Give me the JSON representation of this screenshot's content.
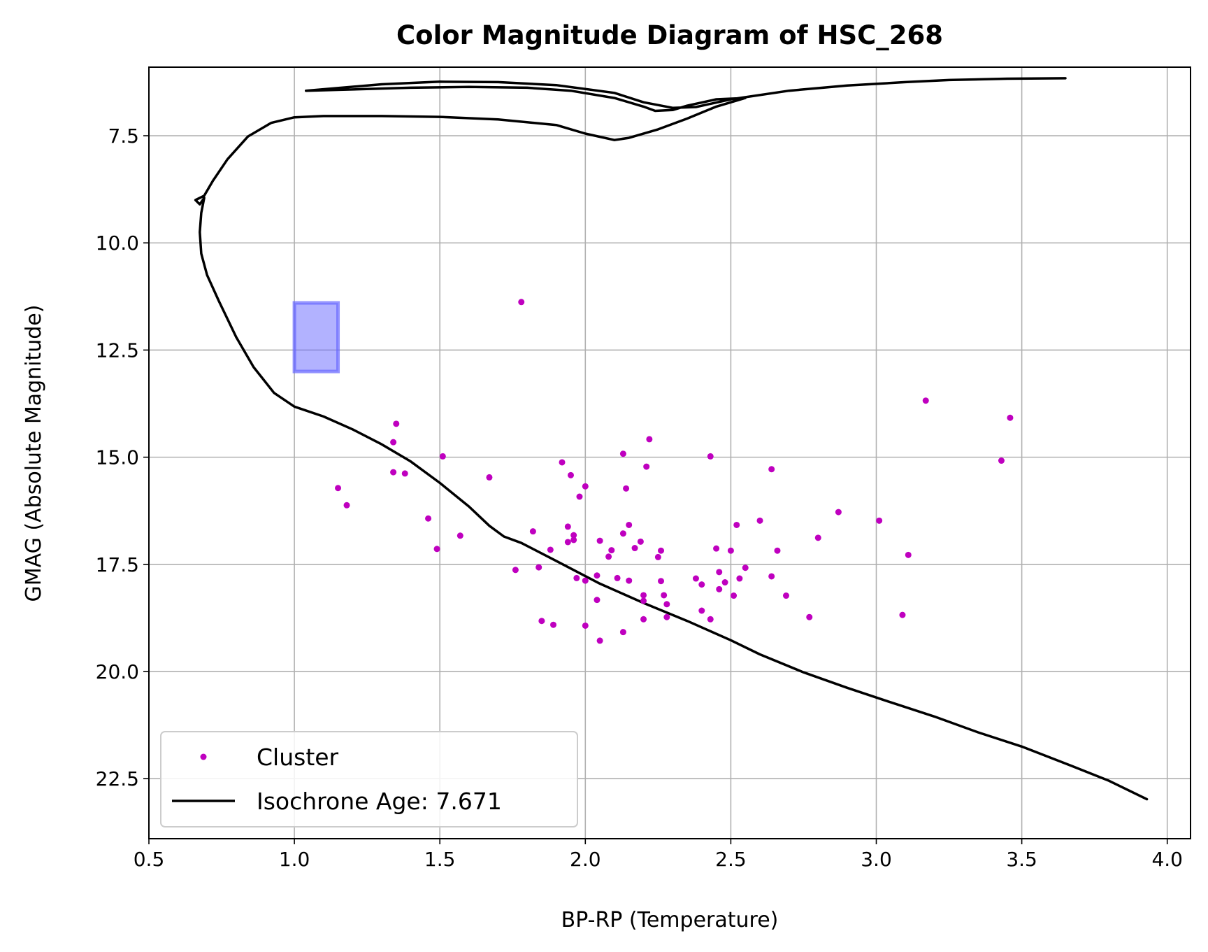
{
  "chart_data": {
    "type": "scatter",
    "title": "Color Magnitude Diagram of HSC_268",
    "xlabel": "BP-RP (Temperature)",
    "ylabel": "GMAG (Absolute Magnitude)",
    "xlim": [
      0.5,
      4.08
    ],
    "ylim": [
      23.9,
      5.9
    ],
    "y_inverted": true,
    "grid": true,
    "legend_position": "lower-left",
    "x_ticks": [
      "0.5",
      "1.0",
      "1.5",
      "2.0",
      "2.5",
      "3.0",
      "3.5",
      "4.0"
    ],
    "x_tick_values": [
      0.5,
      1.0,
      1.5,
      2.0,
      2.5,
      3.0,
      3.5,
      4.0
    ],
    "y_ticks": [
      "7.5",
      "10.0",
      "12.5",
      "15.0",
      "17.5",
      "20.0",
      "22.5"
    ],
    "y_tick_values": [
      7.5,
      10.0,
      12.5,
      15.0,
      17.5,
      20.0,
      22.5
    ],
    "highlight_box": {
      "x": [
        1.0,
        1.15
      ],
      "y": [
        11.4,
        13.0
      ],
      "color": "#6666ff"
    },
    "series": [
      {
        "name": "Cluster",
        "type": "scatter",
        "color": "#bf00bf",
        "points": [
          [
            1.78,
            11.38
          ],
          [
            1.35,
            14.22
          ],
          [
            1.34,
            14.65
          ],
          [
            1.34,
            15.35
          ],
          [
            1.38,
            15.38
          ],
          [
            1.51,
            14.98
          ],
          [
            1.15,
            15.72
          ],
          [
            1.18,
            16.12
          ],
          [
            1.46,
            16.43
          ],
          [
            1.57,
            16.83
          ],
          [
            1.49,
            17.14
          ],
          [
            1.67,
            15.47
          ],
          [
            1.76,
            17.63
          ],
          [
            1.82,
            16.73
          ],
          [
            1.84,
            17.57
          ],
          [
            1.85,
            18.82
          ],
          [
            1.89,
            18.91
          ],
          [
            1.88,
            17.16
          ],
          [
            1.92,
            15.12
          ],
          [
            1.94,
            16.62
          ],
          [
            1.94,
            16.98
          ],
          [
            1.95,
            15.42
          ],
          [
            1.96,
            16.82
          ],
          [
            1.96,
            16.93
          ],
          [
            1.97,
            17.82
          ],
          [
            1.98,
            15.92
          ],
          [
            2.0,
            15.68
          ],
          [
            2.0,
            17.88
          ],
          [
            2.0,
            18.93
          ],
          [
            2.04,
            18.33
          ],
          [
            2.04,
            17.76
          ],
          [
            2.05,
            16.95
          ],
          [
            2.05,
            19.28
          ],
          [
            2.08,
            17.32
          ],
          [
            2.09,
            17.17
          ],
          [
            2.11,
            17.82
          ],
          [
            2.13,
            16.78
          ],
          [
            2.13,
            14.92
          ],
          [
            2.14,
            15.73
          ],
          [
            2.13,
            19.08
          ],
          [
            2.15,
            17.88
          ],
          [
            2.15,
            16.58
          ],
          [
            2.17,
            17.12
          ],
          [
            2.19,
            16.97
          ],
          [
            2.2,
            18.22
          ],
          [
            2.2,
            18.35
          ],
          [
            2.2,
            18.78
          ],
          [
            2.21,
            15.22
          ],
          [
            2.22,
            14.58
          ],
          [
            2.25,
            17.33
          ],
          [
            2.26,
            17.18
          ],
          [
            2.26,
            17.89
          ],
          [
            2.27,
            18.22
          ],
          [
            2.28,
            18.43
          ],
          [
            2.28,
            18.73
          ],
          [
            2.38,
            17.83
          ],
          [
            2.4,
            17.97
          ],
          [
            2.4,
            18.58
          ],
          [
            2.43,
            14.98
          ],
          [
            2.43,
            18.78
          ],
          [
            2.45,
            17.13
          ],
          [
            2.46,
            17.68
          ],
          [
            2.46,
            18.08
          ],
          [
            2.48,
            17.92
          ],
          [
            2.5,
            17.18
          ],
          [
            2.51,
            18.23
          ],
          [
            2.52,
            16.58
          ],
          [
            2.53,
            17.83
          ],
          [
            2.55,
            17.58
          ],
          [
            2.6,
            16.48
          ],
          [
            2.64,
            15.28
          ],
          [
            2.64,
            17.78
          ],
          [
            2.66,
            17.18
          ],
          [
            2.69,
            18.23
          ],
          [
            2.77,
            18.73
          ],
          [
            2.8,
            16.88
          ],
          [
            2.87,
            16.28
          ],
          [
            3.01,
            16.48
          ],
          [
            3.09,
            18.68
          ],
          [
            3.11,
            17.28
          ],
          [
            3.17,
            13.68
          ],
          [
            3.43,
            15.08
          ],
          [
            3.46,
            14.08
          ]
        ]
      },
      {
        "name": "Isochrone Age: 7.671",
        "type": "line",
        "color": "#000000",
        "points": [
          [
            3.93,
            22.98
          ],
          [
            3.8,
            22.55
          ],
          [
            3.67,
            22.2
          ],
          [
            3.5,
            21.75
          ],
          [
            3.35,
            21.42
          ],
          [
            3.2,
            21.05
          ],
          [
            3.05,
            20.72
          ],
          [
            2.9,
            20.38
          ],
          [
            2.75,
            20.02
          ],
          [
            2.6,
            19.6
          ],
          [
            2.5,
            19.27
          ],
          [
            2.35,
            18.82
          ],
          [
            2.2,
            18.4
          ],
          [
            2.05,
            17.95
          ],
          [
            1.9,
            17.42
          ],
          [
            1.78,
            17.0
          ],
          [
            1.72,
            16.85
          ],
          [
            1.67,
            16.6
          ],
          [
            1.6,
            16.15
          ],
          [
            1.5,
            15.6
          ],
          [
            1.4,
            15.1
          ],
          [
            1.3,
            14.7
          ],
          [
            1.2,
            14.35
          ],
          [
            1.1,
            14.05
          ],
          [
            1.0,
            13.82
          ],
          [
            0.93,
            13.5
          ],
          [
            0.86,
            12.9
          ],
          [
            0.8,
            12.2
          ],
          [
            0.74,
            11.35
          ],
          [
            0.7,
            10.75
          ],
          [
            0.68,
            10.25
          ],
          [
            0.675,
            9.75
          ],
          [
            0.68,
            9.3
          ],
          [
            0.69,
            8.95
          ],
          [
            0.675,
            9.1
          ],
          [
            0.66,
            9.0
          ],
          [
            0.69,
            8.9
          ],
          [
            0.72,
            8.55
          ],
          [
            0.77,
            8.05
          ],
          [
            0.84,
            7.52
          ],
          [
            0.92,
            7.2
          ],
          [
            1.0,
            7.07
          ],
          [
            1.1,
            7.04
          ],
          [
            1.3,
            7.04
          ],
          [
            1.5,
            7.06
          ],
          [
            1.7,
            7.12
          ],
          [
            1.9,
            7.25
          ],
          [
            2.0,
            7.45
          ],
          [
            2.1,
            7.6
          ],
          [
            2.15,
            7.55
          ],
          [
            2.25,
            7.35
          ],
          [
            2.35,
            7.1
          ],
          [
            2.45,
            6.82
          ],
          [
            2.55,
            6.62
          ],
          [
            2.45,
            6.65
          ],
          [
            2.35,
            6.8
          ],
          [
            2.3,
            6.9
          ],
          [
            2.24,
            6.92
          ],
          [
            2.2,
            6.82
          ],
          [
            2.1,
            6.62
          ],
          [
            1.95,
            6.45
          ],
          [
            1.8,
            6.38
          ],
          [
            1.6,
            6.36
          ],
          [
            1.4,
            6.38
          ],
          [
            1.2,
            6.42
          ],
          [
            1.04,
            6.45
          ],
          [
            1.3,
            6.3
          ],
          [
            1.5,
            6.24
          ],
          [
            1.7,
            6.25
          ],
          [
            1.9,
            6.32
          ],
          [
            2.1,
            6.5
          ],
          [
            2.2,
            6.72
          ],
          [
            2.3,
            6.85
          ],
          [
            2.38,
            6.83
          ],
          [
            2.5,
            6.65
          ],
          [
            2.7,
            6.45
          ],
          [
            2.9,
            6.33
          ],
          [
            3.1,
            6.25
          ],
          [
            3.25,
            6.2
          ],
          [
            3.45,
            6.17
          ],
          [
            3.65,
            6.16
          ]
        ]
      }
    ]
  }
}
